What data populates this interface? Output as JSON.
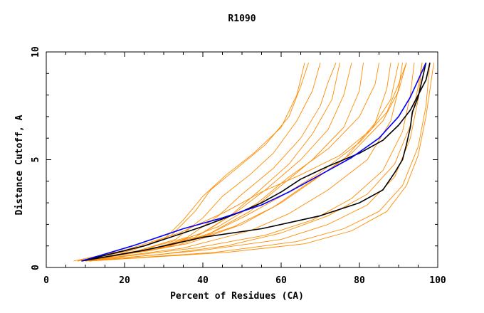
{
  "chart_data": {
    "type": "line",
    "title": "R1090",
    "xlabel": "Percent of Residues (CA)",
    "ylabel": "Distance Cutoff, A",
    "xlim": [
      0,
      100
    ],
    "ylim": [
      0,
      10
    ],
    "x_ticks": [
      "0",
      "20",
      "40",
      "60",
      "80",
      "100"
    ],
    "y_ticks": [
      "0",
      "5",
      "10"
    ],
    "grid": false,
    "colors": {
      "orange": "#ff8c00",
      "black": "#000000",
      "blue": "#0000ff"
    },
    "series": [
      {
        "color": "orange",
        "width": 0.9,
        "points": [
          [
            8,
            0.3
          ],
          [
            22,
            0.8
          ],
          [
            32,
            1.5
          ],
          [
            38,
            2.6
          ],
          [
            42,
            3.6
          ],
          [
            48,
            4.5
          ],
          [
            56,
            5.7
          ],
          [
            62,
            7.0
          ],
          [
            65,
            8.4
          ],
          [
            67,
            9.5
          ]
        ]
      },
      {
        "color": "orange",
        "width": 0.9,
        "points": [
          [
            8,
            0.3
          ],
          [
            21,
            0.8
          ],
          [
            30,
            1.3
          ],
          [
            35,
            2.2
          ],
          [
            40,
            3.3
          ],
          [
            46,
            4.3
          ],
          [
            53,
            5.3
          ],
          [
            60,
            6.5
          ],
          [
            64,
            8.0
          ],
          [
            66,
            9.5
          ]
        ]
      },
      {
        "color": "orange",
        "width": 0.9,
        "points": [
          [
            9,
            0.3
          ],
          [
            22,
            0.7
          ],
          [
            33,
            1.3
          ],
          [
            40,
            2.3
          ],
          [
            45,
            3.3
          ],
          [
            52,
            4.3
          ],
          [
            58,
            5.3
          ],
          [
            64,
            6.8
          ],
          [
            68,
            8.2
          ],
          [
            70,
            9.5
          ]
        ]
      },
      {
        "color": "orange",
        "width": 0.9,
        "points": [
          [
            9,
            0.3
          ],
          [
            24,
            0.8
          ],
          [
            36,
            1.4
          ],
          [
            44,
            2.4
          ],
          [
            50,
            3.4
          ],
          [
            58,
            4.6
          ],
          [
            65,
            6.0
          ],
          [
            70,
            7.5
          ],
          [
            72,
            8.6
          ],
          [
            74,
            9.5
          ]
        ]
      },
      {
        "color": "orange",
        "width": 0.9,
        "points": [
          [
            9,
            0.3
          ],
          [
            26,
            0.8
          ],
          [
            38,
            1.4
          ],
          [
            47,
            2.4
          ],
          [
            54,
            3.5
          ],
          [
            62,
            4.8
          ],
          [
            68,
            6.2
          ],
          [
            73,
            7.8
          ],
          [
            75,
            9.5
          ]
        ]
      },
      {
        "color": "orange",
        "width": 0.9,
        "points": [
          [
            9,
            0.3
          ],
          [
            28,
            0.9
          ],
          [
            40,
            1.6
          ],
          [
            48,
            2.5
          ],
          [
            56,
            3.6
          ],
          [
            65,
            5.0
          ],
          [
            72,
            6.4
          ],
          [
            76,
            8.0
          ],
          [
            78,
            9.5
          ]
        ]
      },
      {
        "color": "orange",
        "width": 0.9,
        "points": [
          [
            10,
            0.3
          ],
          [
            30,
            0.9
          ],
          [
            42,
            1.6
          ],
          [
            52,
            2.6
          ],
          [
            60,
            3.8
          ],
          [
            68,
            5.0
          ],
          [
            76,
            6.5
          ],
          [
            80,
            8.2
          ],
          [
            81,
            9.5
          ]
        ]
      },
      {
        "color": "orange",
        "width": 0.9,
        "points": [
          [
            10,
            0.3
          ],
          [
            31,
            1.0
          ],
          [
            44,
            1.9
          ],
          [
            54,
            3.0
          ],
          [
            62,
            4.2
          ],
          [
            72,
            5.5
          ],
          [
            80,
            7.0
          ],
          [
            84,
            8.5
          ],
          [
            85,
            9.5
          ]
        ]
      },
      {
        "color": "orange",
        "width": 0.9,
        "points": [
          [
            10,
            0.3
          ],
          [
            33,
            1.0
          ],
          [
            48,
            1.9
          ],
          [
            58,
            2.8
          ],
          [
            66,
            3.8
          ],
          [
            76,
            5.0
          ],
          [
            84,
            6.7
          ],
          [
            87,
            8.3
          ],
          [
            88,
            9.5
          ]
        ]
      },
      {
        "color": "orange",
        "width": 0.9,
        "points": [
          [
            10,
            0.3
          ],
          [
            35,
            0.9
          ],
          [
            52,
            1.7
          ],
          [
            62,
            2.5
          ],
          [
            72,
            3.6
          ],
          [
            82,
            5.0
          ],
          [
            88,
            6.8
          ],
          [
            90,
            8.3
          ],
          [
            91,
            9.5
          ]
        ]
      },
      {
        "color": "orange",
        "width": 0.9,
        "points": [
          [
            10,
            0.3
          ],
          [
            38,
            0.9
          ],
          [
            56,
            1.5
          ],
          [
            68,
            2.2
          ],
          [
            78,
            3.2
          ],
          [
            86,
            4.5
          ],
          [
            91,
            6.3
          ],
          [
            93,
            8.0
          ],
          [
            94,
            9.5
          ]
        ]
      },
      {
        "color": "orange",
        "width": 0.9,
        "points": [
          [
            11,
            0.3
          ],
          [
            40,
            0.8
          ],
          [
            60,
            1.3
          ],
          [
            72,
            2.0
          ],
          [
            82,
            2.9
          ],
          [
            89,
            4.2
          ],
          [
            93,
            6.0
          ],
          [
            95,
            7.8
          ],
          [
            96,
            9.5
          ]
        ]
      },
      {
        "color": "orange",
        "width": 0.9,
        "points": [
          [
            11,
            0.3
          ],
          [
            43,
            0.7
          ],
          [
            64,
            1.2
          ],
          [
            76,
            1.8
          ],
          [
            85,
            2.6
          ],
          [
            91,
            3.8
          ],
          [
            95,
            5.6
          ],
          [
            97,
            7.5
          ],
          [
            98,
            9.5
          ]
        ]
      },
      {
        "color": "orange",
        "width": 0.9,
        "points": [
          [
            7,
            0.3
          ],
          [
            20,
            0.8
          ],
          [
            34,
            1.6
          ],
          [
            46,
            2.6
          ],
          [
            55,
            3.5
          ],
          [
            65,
            4.3
          ],
          [
            75,
            5.2
          ],
          [
            83,
            6.4
          ],
          [
            88,
            7.8
          ],
          [
            90,
            9.5
          ]
        ]
      },
      {
        "color": "orange",
        "width": 0.9,
        "points": [
          [
            8,
            0.3
          ],
          [
            27,
            0.8
          ],
          [
            41,
            1.5
          ],
          [
            51,
            2.4
          ],
          [
            60,
            3.3
          ],
          [
            70,
            4.4
          ],
          [
            80,
            5.8
          ],
          [
            87,
            7.2
          ],
          [
            90,
            8.5
          ],
          [
            92,
            9.5
          ]
        ]
      },
      {
        "color": "orange",
        "width": 0.9,
        "points": [
          [
            11,
            0.3
          ],
          [
            46,
            0.7
          ],
          [
            66,
            1.1
          ],
          [
            78,
            1.7
          ],
          [
            87,
            2.6
          ],
          [
            92,
            3.8
          ],
          [
            95,
            5.2
          ],
          [
            97,
            7.0
          ],
          [
            99,
            9.5
          ]
        ]
      },
      {
        "color": "orange",
        "width": 0.9,
        "points": [
          [
            9,
            0.3
          ],
          [
            36,
            1.1
          ],
          [
            50,
            2.0
          ],
          [
            60,
            3.0
          ],
          [
            68,
            4.0
          ],
          [
            78,
            5.3
          ],
          [
            86,
            6.8
          ],
          [
            90,
            8.2
          ],
          [
            92,
            9.5
          ]
        ]
      },
      {
        "color": "orange",
        "width": 0.9,
        "points": [
          [
            10,
            0.3
          ],
          [
            29,
            0.6
          ],
          [
            46,
            1.0
          ],
          [
            60,
            1.6
          ],
          [
            72,
            2.4
          ],
          [
            82,
            3.4
          ],
          [
            89,
            4.8
          ],
          [
            93,
            6.6
          ],
          [
            95,
            8.4
          ],
          [
            96,
            9.5
          ]
        ]
      },
      {
        "color": "black",
        "width": 1.6,
        "points": [
          [
            9,
            0.3
          ],
          [
            25,
            0.8
          ],
          [
            40,
            1.4
          ],
          [
            55,
            1.8
          ],
          [
            70,
            2.4
          ],
          [
            80,
            3.0
          ],
          [
            86,
            3.6
          ],
          [
            89,
            4.4
          ],
          [
            91,
            5.0
          ],
          [
            92,
            5.7
          ],
          [
            93,
            6.5
          ],
          [
            93.5,
            7.2
          ],
          [
            95,
            7.9
          ],
          [
            96,
            8.7
          ],
          [
            97,
            9.5
          ]
        ]
      },
      {
        "color": "black",
        "width": 1.6,
        "points": [
          [
            9,
            0.3
          ],
          [
            25,
            1.0
          ],
          [
            40,
            1.9
          ],
          [
            50,
            2.6
          ],
          [
            55,
            3.0
          ],
          [
            60,
            3.5
          ],
          [
            65,
            4.1
          ],
          [
            72,
            4.7
          ],
          [
            80,
            5.3
          ],
          [
            86,
            5.9
          ],
          [
            90,
            6.6
          ],
          [
            93,
            7.3
          ],
          [
            95,
            8.0
          ],
          [
            97,
            8.7
          ],
          [
            98,
            9.5
          ]
        ]
      },
      {
        "color": "blue",
        "width": 1.6,
        "points": [
          [
            9,
            0.3
          ],
          [
            22,
            1.0
          ],
          [
            35,
            1.8
          ],
          [
            45,
            2.3
          ],
          [
            55,
            2.9
          ],
          [
            62,
            3.5
          ],
          [
            70,
            4.3
          ],
          [
            78,
            5.1
          ],
          [
            85,
            6.0
          ],
          [
            90,
            7.0
          ],
          [
            93,
            7.9
          ],
          [
            95,
            8.7
          ],
          [
            97,
            9.5
          ]
        ]
      }
    ]
  }
}
